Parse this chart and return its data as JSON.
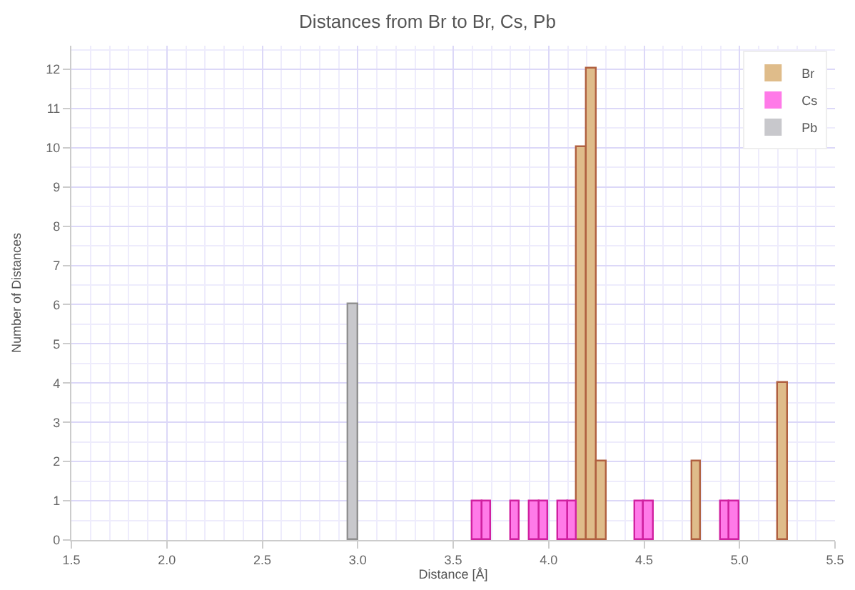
{
  "chart_data": {
    "type": "histogram",
    "title": "Distances from Br to Br, Cs, Pb",
    "xlabel": "Distance [Å]",
    "ylabel": "Number of Distances",
    "bins": [
      1.5,
      1.55,
      1.6,
      1.65,
      1.7,
      1.75,
      1.8,
      1.85,
      1.9,
      1.95,
      2.0,
      2.05,
      2.1,
      2.15,
      2.2,
      2.25,
      2.3,
      2.35,
      2.4,
      2.45,
      2.5,
      2.55,
      2.6,
      2.65,
      2.7,
      2.75,
      2.8,
      2.85,
      2.9,
      2.95,
      3.0,
      3.05,
      3.1,
      3.15,
      3.2,
      3.25,
      3.3,
      3.35,
      3.4,
      3.45,
      3.5,
      3.55,
      3.6,
      3.65,
      3.7,
      3.75,
      3.8,
      3.85,
      3.9,
      3.95,
      4.0,
      4.05,
      4.1,
      4.15,
      4.2,
      4.25,
      4.3,
      4.35,
      4.4,
      4.45,
      4.5,
      4.55,
      4.6,
      4.65,
      4.7,
      4.75,
      4.8,
      4.85,
      4.9,
      4.95,
      5.0,
      5.05,
      5.1,
      5.15,
      5.2,
      5.25,
      5.3,
      5.35,
      5.4,
      5.45,
      5.5
    ],
    "series": [
      {
        "name": "Br",
        "color": "#dfbc8a",
        "values": [
          0,
          0,
          0,
          0,
          0,
          0,
          0,
          0,
          0,
          0,
          0,
          0,
          0,
          0,
          0,
          0,
          0,
          0,
          0,
          0,
          0,
          0,
          0,
          0,
          0,
          0,
          0,
          0,
          0,
          0,
          0,
          0,
          0,
          0,
          0,
          0,
          0,
          0,
          0,
          0,
          0,
          0,
          0,
          0,
          0,
          0,
          0,
          0,
          0,
          0,
          0,
          0,
          0,
          10,
          12,
          2,
          0,
          0,
          0,
          0,
          0,
          0,
          0,
          0,
          0,
          2,
          0,
          0,
          0,
          0,
          0,
          0,
          0,
          0,
          4,
          0,
          0,
          0,
          0,
          0
        ]
      },
      {
        "name": "Cs",
        "color": "#ff7ae8",
        "values": [
          0,
          0,
          0,
          0,
          0,
          0,
          0,
          0,
          0,
          0,
          0,
          0,
          0,
          0,
          0,
          0,
          0,
          0,
          0,
          0,
          0,
          0,
          0,
          0,
          0,
          0,
          0,
          0,
          0,
          0,
          0,
          0,
          0,
          0,
          0,
          0,
          0,
          0,
          0,
          0,
          0,
          0,
          1,
          1,
          0,
          0,
          1,
          0,
          1,
          1,
          0,
          1,
          1,
          0,
          0,
          0,
          0,
          0,
          0,
          1,
          1,
          0,
          0,
          0,
          0,
          0,
          0,
          0,
          1,
          1,
          0,
          0,
          0,
          0,
          0,
          0,
          0,
          0,
          0,
          0
        ]
      },
      {
        "name": "Pb",
        "color": "#c8c8cc",
        "values": [
          0,
          0,
          0,
          0,
          0,
          0,
          0,
          0,
          0,
          0,
          0,
          0,
          0,
          0,
          0,
          0,
          0,
          0,
          0,
          0,
          0,
          0,
          0,
          0,
          0,
          0,
          0,
          0,
          0,
          6,
          0,
          0,
          0,
          0,
          0,
          0,
          0,
          0,
          0,
          0,
          0,
          0,
          0,
          0,
          0,
          0,
          0,
          0,
          0,
          0,
          0,
          0,
          0,
          0,
          0,
          0,
          0,
          0,
          0,
          0,
          0,
          0,
          0,
          0,
          0,
          0,
          0,
          0,
          0,
          0,
          0,
          0,
          0,
          0,
          0,
          0,
          0,
          0,
          0,
          0
        ]
      }
    ],
    "xlim": [
      1.5,
      5.5
    ],
    "xticks": [
      {
        "value": 1.5,
        "label": "1.5"
      },
      {
        "value": 2,
        "label": "2.0"
      },
      {
        "value": 2.5,
        "label": "2.5"
      },
      {
        "value": 3,
        "label": "3.0"
      },
      {
        "value": 3.5,
        "label": "3.5"
      },
      {
        "value": 4,
        "label": "4.0"
      },
      {
        "value": 4.5,
        "label": "4.5"
      },
      {
        "value": 5,
        "label": "5.0"
      },
      {
        "value": 5.5,
        "label": "5.5"
      }
    ],
    "ylim": [
      0,
      12.6
    ],
    "yticks": [
      0,
      1,
      2,
      3,
      4,
      5,
      6,
      7,
      8,
      9,
      10,
      11,
      12
    ],
    "grid": true,
    "legend": "top right"
  }
}
